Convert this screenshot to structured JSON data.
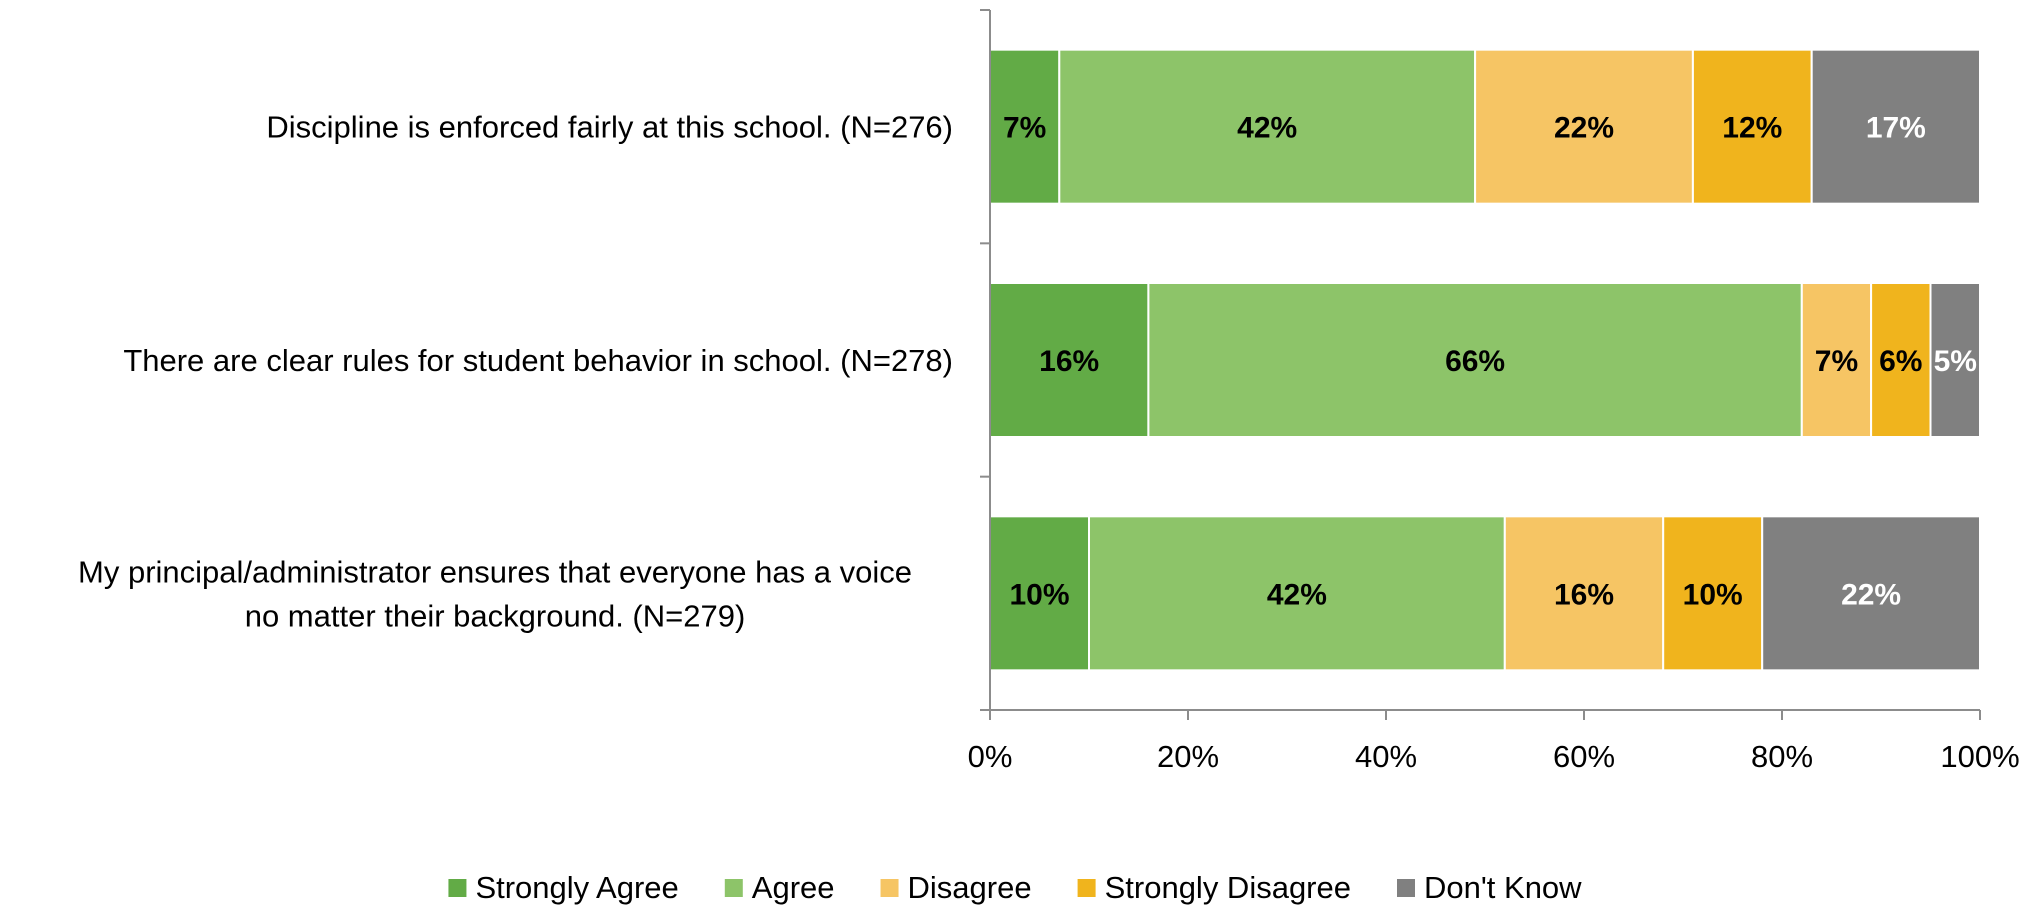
{
  "chart_data": {
    "type": "bar",
    "orientation": "horizontal",
    "stacked": true,
    "categories": [
      [
        "Discipline is enforced fairly at this school. (N=276)"
      ],
      [
        "There are clear rules for student behavior in school. (N=278)"
      ],
      [
        "My principal/administrator ensures that everyone has a voice",
        "no matter their background. (N=279)"
      ]
    ],
    "series": [
      {
        "name": "Strongly Agree",
        "color": "#62ab46",
        "label_color": "#000000",
        "values": [
          7,
          16,
          10
        ]
      },
      {
        "name": "Agree",
        "color": "#8dc469",
        "label_color": "#000000",
        "values": [
          42,
          66,
          42
        ]
      },
      {
        "name": "Disagree",
        "color": "#f6c564",
        "label_color": "#000000",
        "values": [
          22,
          7,
          16
        ]
      },
      {
        "name": "Strongly Disagree",
        "color": "#f0b41d",
        "label_color": "#000000",
        "values": [
          12,
          6,
          10
        ]
      },
      {
        "name": "Don't Know",
        "color": "#808080",
        "label_color": "#ffffff",
        "values": [
          17,
          5,
          22
        ]
      }
    ],
    "xlim": [
      0,
      100
    ],
    "xticks": [
      "0%",
      "20%",
      "40%",
      "60%",
      "80%",
      "100%"
    ],
    "legend_position": "bottom",
    "grid": false
  }
}
